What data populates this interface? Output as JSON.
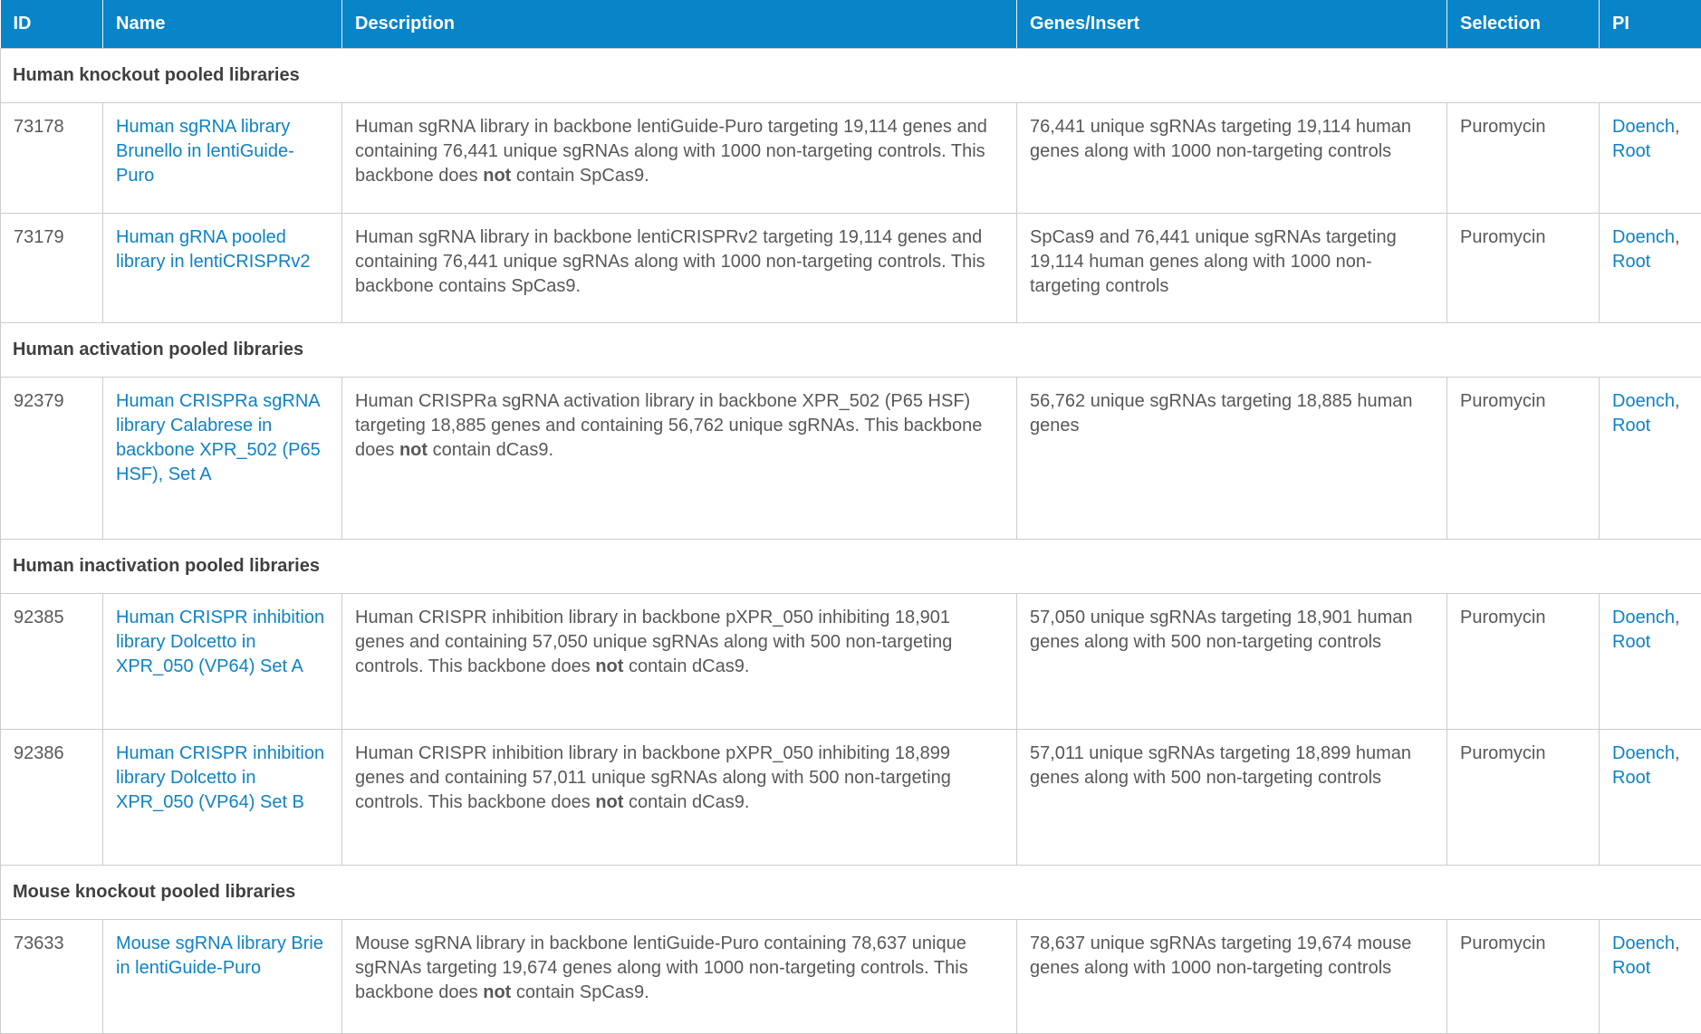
{
  "table": {
    "columns": [
      {
        "label": "ID"
      },
      {
        "label": "Name"
      },
      {
        "label": "Description"
      },
      {
        "label": "Genes/Insert"
      },
      {
        "label": "Selection"
      },
      {
        "label": "PI"
      }
    ],
    "pi_separator": ", ",
    "sections": [
      {
        "title": "Human knockout pooled libraries",
        "rows": [
          {
            "id": "73178",
            "name": "Human sgRNA library Brunello in lentiGuide-Puro",
            "description": {
              "pre": "Human sgRNA library in backbone lentiGuide-Puro targeting 19,114 genes and containing 76,441 unique sgRNAs along with 1000 non-targeting controls. This backbone does ",
              "bold": "not",
              "post": " contain SpCas9."
            },
            "genes_insert": "76,441 unique sgRNAs targeting 19,114 human genes along with 1000 non-targeting controls",
            "selection": "Puromycin",
            "pi": [
              "Doench",
              "Root"
            ]
          },
          {
            "id": "73179",
            "name": "Human gRNA pooled library in lentiCRISPRv2",
            "description": {
              "pre": "Human sgRNA library in backbone lentiCRISPRv2 targeting 19,114 genes and containing 76,441 unique sgRNAs along with 1000 non-targeting controls. This backbone contains SpCas9.",
              "bold": "",
              "post": ""
            },
            "genes_insert": "SpCas9 and 76,441 unique sgRNAs targeting 19,114 human genes along with 1000 non-targeting controls",
            "selection": "Puromycin",
            "pi": [
              "Doench",
              "Root"
            ]
          }
        ]
      },
      {
        "title": "Human activation pooled libraries",
        "rows": [
          {
            "id": "92379",
            "name": "Human CRISPRa sgRNA library Calabrese in backbone XPR_502 (P65 HSF), Set A",
            "description": {
              "pre": "Human CRISPRa sgRNA activation library in backbone XPR_502 (P65 HSF) targeting 18,885 genes and containing 56,762 unique sgRNAs. This backbone does ",
              "bold": "not",
              "post": " contain dCas9."
            },
            "genes_insert": "56,762 unique sgRNAs targeting 18,885 human genes",
            "selection": "Puromycin",
            "pi": [
              "Doench",
              "Root"
            ]
          }
        ]
      },
      {
        "title": "Human inactivation pooled libraries",
        "rows": [
          {
            "id": "92385",
            "name": "Human CRISPR inhibition library Dolcetto in XPR_050 (VP64) Set A",
            "description": {
              "pre": "Human CRISPR inhibition library in backbone pXPR_050 inhibiting 18,901 genes and containing 57,050 unique sgRNAs along with 500 non-targeting controls. This backbone does ",
              "bold": "not",
              "post": " contain dCas9."
            },
            "genes_insert": "57,050 unique sgRNAs targeting 18,901 human genes along with 500 non-targeting controls",
            "selection": "Puromycin",
            "pi": [
              "Doench",
              "Root"
            ]
          },
          {
            "id": "92386",
            "name": "Human CRISPR inhibition library Dolcetto in XPR_050 (VP64) Set B",
            "description": {
              "pre": "Human CRISPR inhibition library in backbone pXPR_050 inhibiting 18,899 genes and containing 57,011 unique sgRNAs along with 500 non-targeting controls. This backbone does ",
              "bold": "not",
              "post": " contain dCas9."
            },
            "genes_insert": "57,011 unique sgRNAs targeting 18,899 human genes along with 500 non-targeting controls",
            "selection": "Puromycin",
            "pi": [
              "Doench",
              "Root"
            ]
          }
        ]
      },
      {
        "title": "Mouse knockout pooled libraries",
        "rows": [
          {
            "id": "73633",
            "name": "Mouse sgRNA library Brie in lentiGuide-Puro",
            "description": {
              "pre": "Mouse sgRNA library in backbone lentiGuide-Puro containing 78,637 unique sgRNAs targeting 19,674 genes along with 1000 non-targeting controls. This backbone does ",
              "bold": "not",
              "post": " contain SpCas9."
            },
            "genes_insert": "78,637 unique sgRNAs targeting 19,674 mouse genes along with 1000 non-targeting controls",
            "selection": "Puromycin",
            "pi": [
              "Doench",
              "Root"
            ]
          }
        ]
      }
    ]
  },
  "colors": {
    "header_bg": "#0884c8",
    "header_text": "#ffffff",
    "link": "#0e82c6",
    "body_text": "#57585a",
    "section_text": "#404042",
    "border": "#cccccc"
  }
}
